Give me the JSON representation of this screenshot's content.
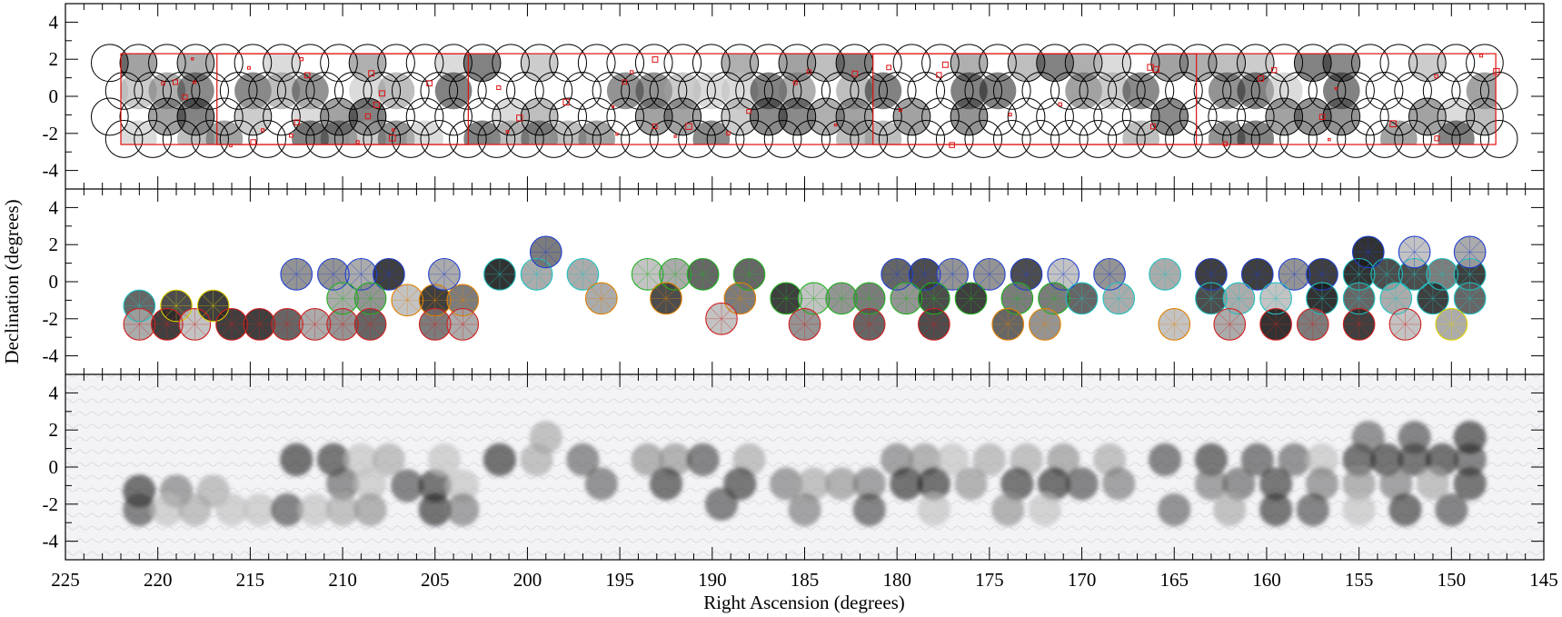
{
  "chart_data": {
    "type": "scatter",
    "figure": "sky coverage map",
    "xlabel": "Right Ascension (degrees)",
    "ylabel": "Declination (degrees)",
    "xlim": [
      225,
      145
    ],
    "x_ticks": [
      225,
      220,
      215,
      210,
      205,
      200,
      195,
      190,
      185,
      180,
      175,
      170,
      165,
      160,
      155,
      150,
      145
    ],
    "x_minor_step": 1,
    "legend": "none",
    "grid": false,
    "survey_region": {
      "ra_min": 147.6,
      "ra_max": 222.0,
      "dec_min": -2.6,
      "dec_max": 2.3
    },
    "panels": [
      {
        "id": "top",
        "description": "All fields: black circles with red outlined coverage boxes",
        "ylim": [
          -5,
          5
        ],
        "y_ticks": [
          -4,
          -2,
          0,
          2,
          4
        ],
        "circle_radius_deg": 1.0,
        "rows_dec": [
          1.8,
          0.3,
          -1.1,
          -2.3
        ],
        "ra_start": 222.6,
        "ra_end": 146.8,
        "ra_step": 1.55,
        "rects": [
          {
            "ra_min": 147.6,
            "ra_max": 222.0,
            "dec_min": -2.6,
            "dec_max": 2.3
          },
          {
            "ra_min": 203.2,
            "ra_max": 216.8,
            "dec_min": -2.6,
            "dec_max": 2.3
          },
          {
            "ra_min": 163.8,
            "ra_max": 181.3,
            "dec_min": -2.6,
            "dec_max": 2.3
          }
        ]
      },
      {
        "id": "middle",
        "description": "Observed fields colored by pointing group",
        "ylim": [
          -5,
          5
        ],
        "y_ticks": [
          -4,
          -2,
          0,
          2,
          4
        ],
        "circle_radius_deg": 0.85,
        "fields": [
          [
            221.0,
            -1.3,
            "#20c0c0"
          ],
          [
            219.0,
            -1.3,
            "#e0d000"
          ],
          [
            221.0,
            -2.3,
            "#d02020"
          ],
          [
            219.5,
            -2.3,
            "#d02020"
          ],
          [
            218.0,
            -2.3,
            "#d02020"
          ],
          [
            217.0,
            -1.3,
            "#e0d000"
          ],
          [
            216.0,
            -2.3,
            "#d02020"
          ],
          [
            214.5,
            -2.3,
            "#d02020"
          ],
          [
            213.0,
            -2.3,
            "#d02020"
          ],
          [
            211.5,
            -2.3,
            "#d02020"
          ],
          [
            212.5,
            0.4,
            "#2040d0"
          ],
          [
            210.5,
            0.4,
            "#2040d0"
          ],
          [
            209.0,
            0.4,
            "#2040d0"
          ],
          [
            207.5,
            0.4,
            "#2040d0"
          ],
          [
            210.0,
            -0.9,
            "#20b020"
          ],
          [
            208.5,
            -0.9,
            "#20b020"
          ],
          [
            210.0,
            -2.3,
            "#d02020"
          ],
          [
            208.5,
            -2.3,
            "#d02020"
          ],
          [
            206.5,
            -1.0,
            "#e08000"
          ],
          [
            205.0,
            -1.0,
            "#e08000"
          ],
          [
            203.5,
            -1.0,
            "#e08000"
          ],
          [
            205.0,
            -2.3,
            "#d02020"
          ],
          [
            203.5,
            -2.3,
            "#d02020"
          ],
          [
            204.5,
            0.4,
            "#2040d0"
          ],
          [
            201.5,
            0.4,
            "#20c0c0"
          ],
          [
            199.5,
            0.4,
            "#20c0c0"
          ],
          [
            199.0,
            1.6,
            "#2040d0"
          ],
          [
            197.0,
            0.4,
            "#20c0c0"
          ],
          [
            196.0,
            -0.9,
            "#e08000"
          ],
          [
            193.5,
            0.4,
            "#20b020"
          ],
          [
            192.0,
            0.4,
            "#20b020"
          ],
          [
            190.5,
            0.4,
            "#20b020"
          ],
          [
            188.0,
            0.4,
            "#20b020"
          ],
          [
            192.5,
            -0.9,
            "#e08000"
          ],
          [
            188.5,
            -0.9,
            "#e08000"
          ],
          [
            189.5,
            -2.0,
            "#d02020"
          ],
          [
            186.0,
            -0.9,
            "#20b020"
          ],
          [
            184.5,
            -0.9,
            "#20b020"
          ],
          [
            183.0,
            -0.9,
            "#20b020"
          ],
          [
            181.5,
            -0.9,
            "#20b020"
          ],
          [
            185.0,
            -2.3,
            "#d02020"
          ],
          [
            181.5,
            -2.3,
            "#d02020"
          ],
          [
            180.0,
            0.4,
            "#2040d0"
          ],
          [
            178.5,
            0.4,
            "#2040d0"
          ],
          [
            177.0,
            0.4,
            "#2040d0"
          ],
          [
            175.0,
            0.4,
            "#2040d0"
          ],
          [
            173.0,
            0.4,
            "#2040d0"
          ],
          [
            171.0,
            0.4,
            "#2040d0"
          ],
          [
            168.5,
            0.4,
            "#2040d0"
          ],
          [
            179.5,
            -0.9,
            "#20b020"
          ],
          [
            178.0,
            -0.9,
            "#20b020"
          ],
          [
            176.0,
            -0.9,
            "#20b020"
          ],
          [
            173.5,
            -0.9,
            "#20b020"
          ],
          [
            171.5,
            -0.9,
            "#20b020"
          ],
          [
            178.0,
            -2.3,
            "#d02020"
          ],
          [
            174.0,
            -2.3,
            "#e08000"
          ],
          [
            172.0,
            -2.3,
            "#e08000"
          ],
          [
            170.0,
            -0.9,
            "#20c0c0"
          ],
          [
            168.0,
            -0.9,
            "#20c0c0"
          ],
          [
            165.5,
            0.4,
            "#20c0c0"
          ],
          [
            163.0,
            0.4,
            "#2040d0"
          ],
          [
            160.5,
            0.4,
            "#2040d0"
          ],
          [
            158.5,
            0.4,
            "#2040d0"
          ],
          [
            157.0,
            0.4,
            "#2040d0"
          ],
          [
            165.0,
            -2.3,
            "#e08000"
          ],
          [
            163.0,
            -0.9,
            "#20c0c0"
          ],
          [
            161.5,
            -0.9,
            "#20c0c0"
          ],
          [
            159.5,
            -0.9,
            "#20c0c0"
          ],
          [
            157.0,
            -0.9,
            "#20c0c0"
          ],
          [
            162.0,
            -2.3,
            "#d02020"
          ],
          [
            159.5,
            -2.3,
            "#d02020"
          ],
          [
            157.5,
            -2.3,
            "#d02020"
          ],
          [
            155.0,
            0.4,
            "#20c0c0"
          ],
          [
            153.5,
            0.4,
            "#20c0c0"
          ],
          [
            152.0,
            0.4,
            "#20c0c0"
          ],
          [
            150.5,
            0.4,
            "#20c0c0"
          ],
          [
            149.0,
            0.4,
            "#20c0c0"
          ],
          [
            154.5,
            1.6,
            "#2040d0"
          ],
          [
            152.0,
            1.6,
            "#2040d0"
          ],
          [
            149.0,
            1.6,
            "#2040d0"
          ],
          [
            155.0,
            -0.9,
            "#20c0c0"
          ],
          [
            153.0,
            -0.9,
            "#20c0c0"
          ],
          [
            151.0,
            -0.9,
            "#20c0c0"
          ],
          [
            149.0,
            -0.9,
            "#20c0c0"
          ],
          [
            155.0,
            -2.3,
            "#d02020"
          ],
          [
            152.5,
            -2.3,
            "#d02020"
          ],
          [
            150.0,
            -2.3,
            "#e0d000"
          ]
        ]
      },
      {
        "id": "bottom",
        "description": "Smoothed coverage map on light gray background",
        "ylim": [
          -5,
          5
        ],
        "y_ticks": [
          -4,
          -2,
          0,
          2,
          4
        ]
      }
    ]
  }
}
